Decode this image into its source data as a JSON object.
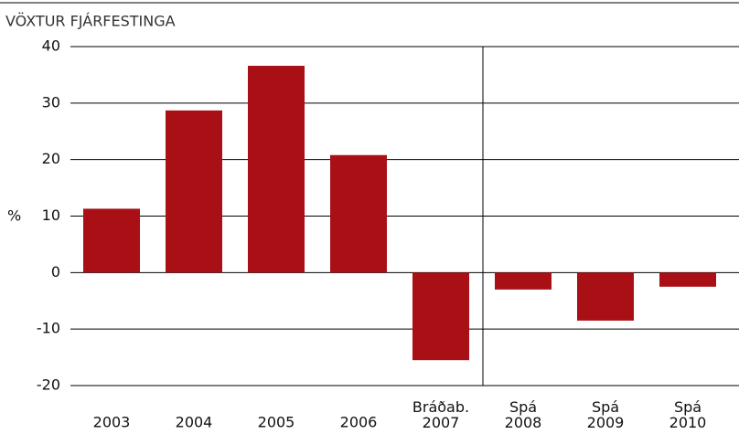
{
  "chart_data": {
    "type": "bar",
    "title": "VÖXTUR FJÁRFESTINGA",
    "y_label": "%",
    "categories": [
      "2003",
      "2004",
      "2005",
      "2006",
      "Bráðab. 2007",
      "Spá 2008",
      "Spá 2009",
      "Spá 2010"
    ],
    "values": [
      11.3,
      28.7,
      36.6,
      20.8,
      -15.5,
      -3,
      -8.5,
      -2.5
    ],
    "color": "#a81016",
    "ylim": [
      -20,
      40
    ],
    "yticks": [
      -20,
      -10,
      0,
      10,
      20,
      30,
      40
    ],
    "grid": true
  }
}
